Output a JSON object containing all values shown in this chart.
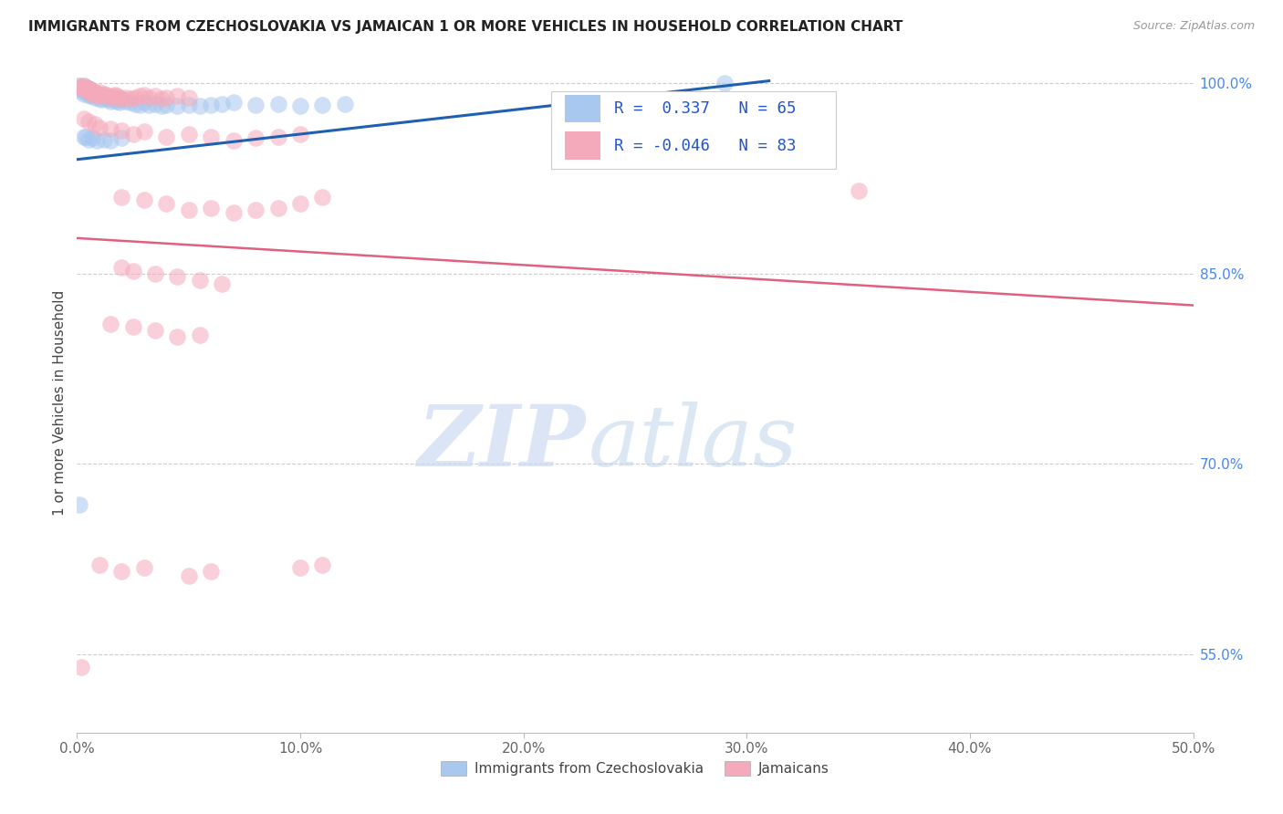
{
  "title": "IMMIGRANTS FROM CZECHOSLOVAKIA VS JAMAICAN 1 OR MORE VEHICLES IN HOUSEHOLD CORRELATION CHART",
  "source": "Source: ZipAtlas.com",
  "ylabel": "1 or more Vehicles in Household",
  "xmin": 0.0,
  "xmax": 0.5,
  "ymin": 0.488,
  "ymax": 1.008,
  "xtick_labels": [
    "0.0%",
    "10.0%",
    "20.0%",
    "30.0%",
    "40.0%",
    "50.0%"
  ],
  "xtick_vals": [
    0.0,
    0.1,
    0.2,
    0.3,
    0.4,
    0.5
  ],
  "ytick_labels_right": [
    "100.0%",
    "85.0%",
    "70.0%",
    "55.0%"
  ],
  "ytick_vals_right": [
    1.0,
    0.85,
    0.7,
    0.55
  ],
  "legend_label1": "Immigrants from Czechoslovakia",
  "legend_label2": "Jamaicans",
  "R1": 0.337,
  "N1": 65,
  "R2": -0.046,
  "N2": 83,
  "color_blue": "#A8C8F0",
  "color_pink": "#F5AABB",
  "trendline_blue": "#2060B0",
  "trendline_pink": "#E06080",
  "watermark_zip": "ZIP",
  "watermark_atlas": "atlas",
  "blue_x": [
    0.001,
    0.002,
    0.002,
    0.003,
    0.003,
    0.003,
    0.004,
    0.004,
    0.004,
    0.005,
    0.005,
    0.005,
    0.006,
    0.006,
    0.006,
    0.007,
    0.007,
    0.008,
    0.008,
    0.008,
    0.009,
    0.009,
    0.01,
    0.01,
    0.011,
    0.011,
    0.012,
    0.013,
    0.014,
    0.015,
    0.016,
    0.017,
    0.018,
    0.019,
    0.02,
    0.022,
    0.024,
    0.026,
    0.028,
    0.03,
    0.032,
    0.035,
    0.038,
    0.04,
    0.045,
    0.05,
    0.055,
    0.06,
    0.065,
    0.07,
    0.08,
    0.09,
    0.1,
    0.11,
    0.12,
    0.003,
    0.005,
    0.007,
    0.009,
    0.012,
    0.015,
    0.02,
    0.29,
    0.001,
    0.004
  ],
  "blue_y": [
    0.998,
    0.996,
    0.994,
    0.998,
    0.995,
    0.992,
    0.997,
    0.995,
    0.993,
    0.996,
    0.994,
    0.991,
    0.995,
    0.993,
    0.99,
    0.994,
    0.992,
    0.993,
    0.991,
    0.989,
    0.992,
    0.99,
    0.991,
    0.988,
    0.99,
    0.987,
    0.989,
    0.988,
    0.987,
    0.986,
    0.988,
    0.987,
    0.986,
    0.985,
    0.987,
    0.986,
    0.985,
    0.984,
    0.983,
    0.985,
    0.983,
    0.984,
    0.982,
    0.983,
    0.982,
    0.983,
    0.982,
    0.983,
    0.984,
    0.985,
    0.983,
    0.984,
    0.982,
    0.983,
    0.984,
    0.958,
    0.956,
    0.957,
    0.955,
    0.956,
    0.955,
    0.957,
    1.0,
    0.668,
    0.958
  ],
  "pink_x": [
    0.001,
    0.002,
    0.003,
    0.003,
    0.004,
    0.004,
    0.005,
    0.005,
    0.006,
    0.006,
    0.007,
    0.007,
    0.008,
    0.008,
    0.009,
    0.01,
    0.01,
    0.011,
    0.012,
    0.013,
    0.014,
    0.015,
    0.016,
    0.017,
    0.018,
    0.019,
    0.02,
    0.022,
    0.024,
    0.026,
    0.028,
    0.03,
    0.032,
    0.035,
    0.038,
    0.04,
    0.045,
    0.05,
    0.003,
    0.005,
    0.008,
    0.01,
    0.015,
    0.02,
    0.025,
    0.03,
    0.04,
    0.05,
    0.06,
    0.07,
    0.08,
    0.09,
    0.1,
    0.02,
    0.03,
    0.04,
    0.05,
    0.06,
    0.07,
    0.08,
    0.09,
    0.1,
    0.11,
    0.02,
    0.025,
    0.035,
    0.045,
    0.055,
    0.065,
    0.015,
    0.025,
    0.035,
    0.045,
    0.055,
    0.35,
    0.002,
    0.01,
    0.02,
    0.03,
    0.05,
    0.06,
    0.1,
    0.11
  ],
  "pink_y": [
    0.998,
    0.997,
    0.998,
    0.996,
    0.997,
    0.995,
    0.996,
    0.994,
    0.995,
    0.993,
    0.994,
    0.992,
    0.993,
    0.991,
    0.992,
    0.993,
    0.99,
    0.991,
    0.992,
    0.991,
    0.99,
    0.989,
    0.99,
    0.991,
    0.99,
    0.989,
    0.988,
    0.989,
    0.988,
    0.989,
    0.99,
    0.991,
    0.989,
    0.99,
    0.988,
    0.989,
    0.99,
    0.989,
    0.972,
    0.97,
    0.968,
    0.965,
    0.964,
    0.963,
    0.96,
    0.962,
    0.958,
    0.96,
    0.958,
    0.955,
    0.957,
    0.958,
    0.96,
    0.91,
    0.908,
    0.905,
    0.9,
    0.902,
    0.898,
    0.9,
    0.902,
    0.905,
    0.91,
    0.855,
    0.852,
    0.85,
    0.848,
    0.845,
    0.842,
    0.81,
    0.808,
    0.805,
    0.8,
    0.802,
    0.915,
    0.54,
    0.62,
    0.615,
    0.618,
    0.612,
    0.615,
    0.618,
    0.62
  ]
}
